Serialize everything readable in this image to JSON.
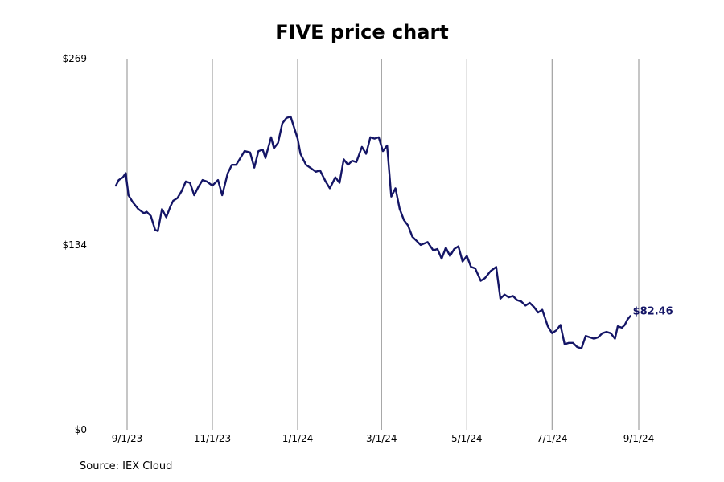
{
  "chart_data": {
    "type": "line",
    "title": "FIVE price chart",
    "source": "Source: IEX Cloud",
    "ylim": [
      0,
      269
    ],
    "yticks": [
      "$0",
      "$134",
      "$269"
    ],
    "ytick_values": [
      0,
      134,
      269
    ],
    "xticks": [
      "9/1/23",
      "11/1/23",
      "1/1/24",
      "3/1/24",
      "5/1/24",
      "7/1/24",
      "9/1/24"
    ],
    "xtick_dates": [
      "2023-09-01",
      "2023-11-01",
      "2024-01-01",
      "2024-03-01",
      "2024-05-01",
      "2024-07-01",
      "2024-09-01"
    ],
    "xlim": [
      "2023-08-24",
      "2024-09-01"
    ],
    "grid": "vertical",
    "last_value_label": "$82.46",
    "colors": {
      "line": "#141566",
      "grid": "#8c8c8c"
    },
    "series": [
      {
        "x": [
          "2023-08-24",
          "2023-08-26",
          "2023-08-29",
          "2023-08-31",
          "2023-09-02",
          "2023-09-05",
          "2023-09-09",
          "2023-09-13",
          "2023-09-15",
          "2023-09-18",
          "2023-09-21",
          "2023-09-23",
          "2023-09-26",
          "2023-09-29",
          "2023-10-02",
          "2023-10-04",
          "2023-10-07",
          "2023-10-10",
          "2023-10-13",
          "2023-10-16",
          "2023-10-19",
          "2023-10-22",
          "2023-10-25",
          "2023-10-28",
          "2023-11-01",
          "2023-11-05",
          "2023-11-08",
          "2023-11-12",
          "2023-11-15",
          "2023-11-18",
          "2023-11-21",
          "2023-11-24",
          "2023-11-28",
          "2023-12-01",
          "2023-12-04",
          "2023-12-07",
          "2023-12-09",
          "2023-12-13",
          "2023-12-15",
          "2023-12-18",
          "2023-12-21",
          "2023-12-24",
          "2023-12-27",
          "2024-01-01",
          "2024-01-03",
          "2024-01-07",
          "2024-01-10",
          "2024-01-14",
          "2024-01-17",
          "2024-01-21",
          "2024-01-24",
          "2024-01-28",
          "2024-01-31",
          "2024-02-03",
          "2024-02-06",
          "2024-02-09",
          "2024-02-12",
          "2024-02-16",
          "2024-02-19",
          "2024-02-22",
          "2024-02-25",
          "2024-02-28",
          "2024-03-02",
          "2024-03-05",
          "2024-03-08",
          "2024-03-11",
          "2024-03-14",
          "2024-03-17",
          "2024-03-20",
          "2024-03-23",
          "2024-03-26",
          "2024-03-29",
          "2024-04-03",
          "2024-04-07",
          "2024-04-10",
          "2024-04-13",
          "2024-04-16",
          "2024-04-19",
          "2024-04-22",
          "2024-04-25",
          "2024-04-28",
          "2024-05-01",
          "2024-05-04",
          "2024-05-07",
          "2024-05-11",
          "2024-05-14",
          "2024-05-18",
          "2024-05-22",
          "2024-05-25",
          "2024-05-28",
          "2024-05-31",
          "2024-06-03",
          "2024-06-06",
          "2024-06-09",
          "2024-06-12",
          "2024-06-15",
          "2024-06-18",
          "2024-06-21",
          "2024-06-24",
          "2024-06-28",
          "2024-07-01",
          "2024-07-04",
          "2024-07-07",
          "2024-07-10",
          "2024-07-13",
          "2024-07-16",
          "2024-07-19",
          "2024-07-22",
          "2024-07-25",
          "2024-07-28",
          "2024-07-31",
          "2024-08-03",
          "2024-08-06",
          "2024-08-09",
          "2024-08-12",
          "2024-08-15",
          "2024-08-17",
          "2024-08-20",
          "2024-08-22",
          "2024-08-24",
          "2024-08-26"
        ],
        "values": [
          177,
          181,
          183,
          186,
          170,
          165,
          160,
          157,
          158,
          155,
          145,
          144,
          160,
          154,
          162,
          166,
          168,
          173,
          180,
          179,
          170,
          176,
          181,
          180,
          177,
          181,
          170,
          186,
          192,
          192,
          197,
          202,
          201,
          190,
          202,
          203,
          197,
          212,
          204,
          208,
          222,
          226,
          227,
          211,
          200,
          192,
          190,
          187,
          188,
          180,
          175,
          183,
          179,
          196,
          192,
          195,
          194,
          205,
          200,
          212,
          211,
          212,
          202,
          206,
          169,
          175,
          160,
          152,
          148,
          140,
          137,
          134,
          136,
          130,
          131,
          124,
          132,
          126,
          131,
          133,
          122,
          126,
          118,
          117,
          108,
          110,
          115,
          118,
          95,
          98,
          96,
          97,
          94,
          93,
          90,
          92,
          89,
          85,
          87,
          75,
          70,
          72,
          76,
          62,
          63,
          63,
          60,
          59,
          68,
          67,
          66,
          67,
          70,
          71,
          70,
          66,
          75,
          74,
          76,
          80,
          82.46
        ]
      }
    ]
  }
}
